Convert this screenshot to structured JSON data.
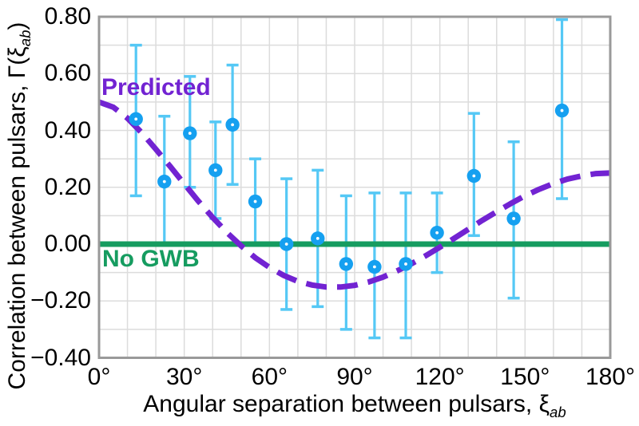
{
  "figure": {
    "background": "#FFFFFF",
    "frame_color": "#999999",
    "grid_color": "#DCDCDC"
  },
  "annotations": {
    "predicted": {
      "text": "Predicted",
      "color": "#7223D2"
    },
    "no_gwb": {
      "text": "No GWB",
      "color": "#169C60"
    }
  },
  "axes": {
    "x": {
      "label_text": "Angular separation between pulsars, ",
      "label_symbol": "ξ",
      "label_sub": "ab",
      "min": 0,
      "max": 180,
      "grid_step": 10,
      "ticks": [
        {
          "value": 0,
          "label": "0°"
        },
        {
          "value": 30,
          "label": "30°"
        },
        {
          "value": 60,
          "label": "60°"
        },
        {
          "value": 90,
          "label": "90°"
        },
        {
          "value": 120,
          "label": "120°"
        },
        {
          "value": 150,
          "label": "150°"
        },
        {
          "value": 180,
          "label": "180°"
        }
      ]
    },
    "y": {
      "label_text": "Correlation between pulsars, ",
      "label_symbol": "Γ(ξ",
      "label_sub": "ab",
      "label_suffix": ")",
      "min": -0.4,
      "max": 0.8,
      "grid_step": 0.1,
      "ticks": [
        {
          "value": 0.8,
          "label": "0.80"
        },
        {
          "value": 0.6,
          "label": "0.60"
        },
        {
          "value": 0.4,
          "label": "0.40"
        },
        {
          "value": 0.2,
          "label": "0.20"
        },
        {
          "value": 0.0,
          "label": "0.00"
        },
        {
          "value": -0.2,
          "label": "−0.20"
        },
        {
          "value": -0.4,
          "label": "−0.40"
        }
      ]
    }
  },
  "chart_data": {
    "type": "scatter",
    "title": "",
    "xlabel": "Angular separation between pulsars, ξab",
    "ylabel": "Correlation between pulsars, Γ(ξab)",
    "xlim": [
      0,
      180
    ],
    "ylim": [
      -0.4,
      0.8
    ],
    "grid": true,
    "series": [
      {
        "name": "binned pulsar-pair correlations",
        "type": "scatter_with_errorbars",
        "marker_color": "#15A0F0",
        "marker_center_color": "#FFFFFF",
        "errorbar_color": "#55C8F5",
        "points": [
          {
            "x": 13,
            "y": 0.44,
            "err_lo": 0.17,
            "err_hi": 0.7
          },
          {
            "x": 23,
            "y": 0.22,
            "err_lo": 0.0,
            "err_hi": 0.45
          },
          {
            "x": 32,
            "y": 0.39,
            "err_lo": 0.2,
            "err_hi": 0.59
          },
          {
            "x": 41,
            "y": 0.26,
            "err_lo": 0.09,
            "err_hi": 0.43
          },
          {
            "x": 47,
            "y": 0.42,
            "err_lo": 0.21,
            "err_hi": 0.63
          },
          {
            "x": 55,
            "y": 0.15,
            "err_lo": 0.0,
            "err_hi": 0.3
          },
          {
            "x": 66,
            "y": 0.0,
            "err_lo": -0.23,
            "err_hi": 0.23
          },
          {
            "x": 77,
            "y": 0.02,
            "err_lo": -0.22,
            "err_hi": 0.26
          },
          {
            "x": 87,
            "y": -0.07,
            "err_lo": -0.3,
            "err_hi": 0.17
          },
          {
            "x": 97,
            "y": -0.08,
            "err_lo": -0.33,
            "err_hi": 0.18
          },
          {
            "x": 108,
            "y": -0.07,
            "err_lo": -0.33,
            "err_hi": 0.18
          },
          {
            "x": 119,
            "y": 0.04,
            "err_lo": -0.1,
            "err_hi": 0.18
          },
          {
            "x": 132,
            "y": 0.24,
            "err_lo": 0.03,
            "err_hi": 0.46
          },
          {
            "x": 146,
            "y": 0.09,
            "err_lo": -0.19,
            "err_hi": 0.36
          },
          {
            "x": 163,
            "y": 0.47,
            "err_lo": 0.16,
            "err_hi": 0.79
          }
        ]
      },
      {
        "name": "Predicted",
        "type": "dashed_line",
        "color": "#7223D2",
        "x": [
          0,
          5,
          10,
          15,
          20,
          25,
          30,
          35,
          40,
          45,
          50,
          55,
          60,
          65,
          70,
          75,
          80,
          85,
          90,
          95,
          100,
          105,
          110,
          115,
          120,
          125,
          130,
          135,
          140,
          145,
          150,
          155,
          160,
          165,
          170,
          175,
          180
        ],
        "y": [
          0.5,
          0.482,
          0.443,
          0.392,
          0.334,
          0.274,
          0.212,
          0.151,
          0.094,
          0.041,
          -0.006,
          -0.048,
          -0.082,
          -0.11,
          -0.131,
          -0.144,
          -0.151,
          -0.151,
          -0.145,
          -0.133,
          -0.116,
          -0.094,
          -0.069,
          -0.041,
          -0.011,
          0.02,
          0.052,
          0.084,
          0.114,
          0.143,
          0.17,
          0.193,
          0.213,
          0.229,
          0.24,
          0.248,
          0.25
        ]
      },
      {
        "name": "No GWB",
        "type": "horizontal_line",
        "color": "#169C60",
        "y": 0.0
      }
    ]
  }
}
